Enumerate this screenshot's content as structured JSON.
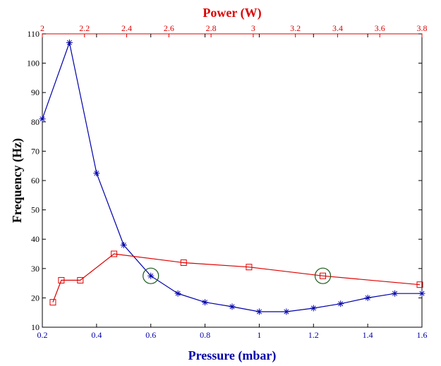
{
  "chart_data": {
    "type": "line",
    "title": "",
    "xlabel": "Pressure (mbar)",
    "ylabel": "Frequency (Hz)",
    "x2label": "Power (W)",
    "xlim": [
      0.2,
      1.6
    ],
    "ylim": [
      10,
      110
    ],
    "x2lim": [
      2,
      3.8
    ],
    "xticks": [
      "0.2",
      "0.4",
      "0.6",
      "0.8",
      "1",
      "1.2",
      "1.4",
      "1.6"
    ],
    "yticks": [
      "10",
      "20",
      "30",
      "40",
      "50",
      "60",
      "70",
      "80",
      "90",
      "100",
      "110"
    ],
    "x2ticks": [
      "2",
      "2.2",
      "2.4",
      "2.6",
      "2.8",
      "3",
      "3.2",
      "3.4",
      "3.6",
      "3.8"
    ],
    "grid": false,
    "colors": {
      "pressure_series": "#0000aa",
      "power_series": "#dd0000",
      "highlight": "#1a5a1a",
      "axis": "#000000",
      "top_axis": "#dd0000"
    },
    "series": [
      {
        "axis": "bottom",
        "marker": "asterisk",
        "x": [
          0.2,
          0.3,
          0.4,
          0.5,
          0.6,
          0.7,
          0.8,
          0.9,
          1.0,
          1.1,
          1.2,
          1.3,
          1.4,
          1.5,
          1.6
        ],
        "y": [
          81,
          107,
          62.5,
          38,
          27.5,
          21.5,
          18.5,
          17,
          15.3,
          15.3,
          16.5,
          18,
          20,
          21.5,
          21.5
        ]
      },
      {
        "axis": "top",
        "marker": "square",
        "x": [
          2.05,
          2.09,
          2.18,
          2.34,
          2.67,
          2.98,
          3.33,
          3.79
        ],
        "y": [
          18.5,
          26,
          26,
          35,
          32,
          30.5,
          27.5,
          24.5
        ]
      }
    ],
    "highlights": [
      {
        "axis": "bottom",
        "x": 0.6,
        "y": 27.5
      },
      {
        "axis": "top",
        "x": 3.33,
        "y": 27.5
      }
    ]
  }
}
